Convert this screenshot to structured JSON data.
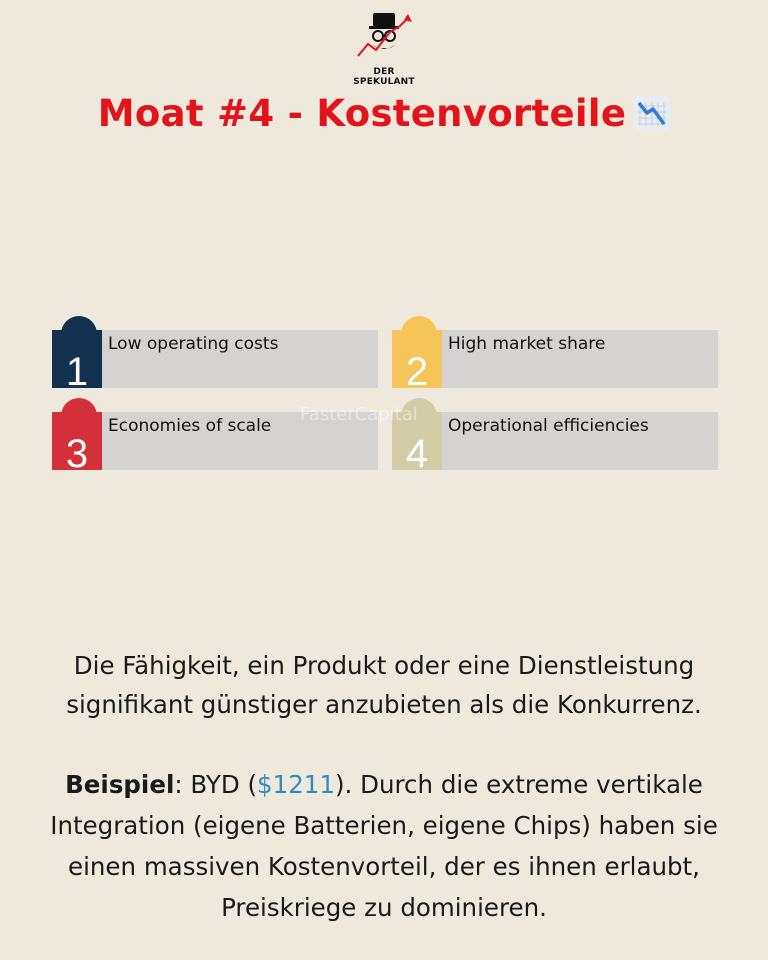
{
  "brand": {
    "name": "DER SPEKULANT",
    "logo_icon": "top-hat-investor-icon"
  },
  "title": {
    "text": "Moat #4 - Kostenvorteile",
    "icon": "chart-decreasing-icon",
    "color": "#e3131b"
  },
  "infographic": {
    "watermark": "FasterCapital",
    "items": [
      {
        "number": "1",
        "label": "Low operating costs",
        "color": "#12304f"
      },
      {
        "number": "2",
        "label": "High market share",
        "color": "#f5c55a"
      },
      {
        "number": "3",
        "label": "Economies of scale",
        "color": "#d3303a"
      },
      {
        "number": "4",
        "label": "Operational efficiencies",
        "color": "#d2cda7"
      }
    ]
  },
  "description": {
    "line1": "Die Fähigkeit, ein Produkt oder eine Dienstleistung",
    "line2": "signifikant günstiger anzubieten als die Konkurrenz."
  },
  "example": {
    "label": "Beispiel",
    "company_prefix": ": BYD (",
    "ticker": "$1211",
    "text_after_ticker": "). Durch die extreme vertikale",
    "line2": "Integration (eigene Batterien, eigene Chips) haben sie",
    "line3": "einen massiven Kostenvorteil, der es ihnen erlaubt,",
    "line4": "Preiskriege zu dominieren."
  }
}
